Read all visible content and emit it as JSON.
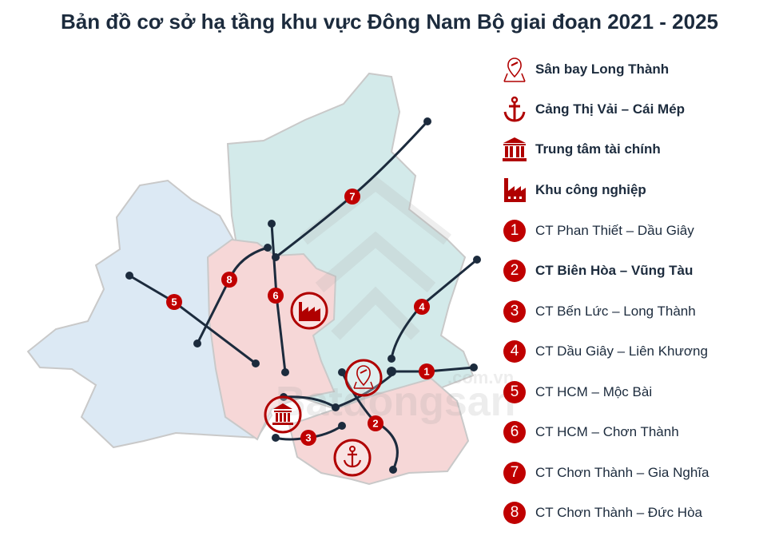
{
  "title": "Bản đồ cơ sở hạ tầng khu vực Đông Nam Bộ giai đoạn 2021 - 2025",
  "colors": {
    "accent_red": "#c00000",
    "line": "#1c2b3d",
    "region_blue": "#dce9f4",
    "region_teal": "#d3eaea",
    "region_pink": "#f6d7d7"
  },
  "watermark": "Batdongsan .com.vn",
  "legend": {
    "facilities": [
      {
        "icon": "airport-pin-icon",
        "label": "Sân bay Long Thành"
      },
      {
        "icon": "anchor-icon",
        "label": "Cảng Thị Vải – Cái Mép"
      },
      {
        "icon": "bank-icon",
        "label": "Trung tâm tài chính"
      },
      {
        "icon": "factory-icon",
        "label": "Khu công nghiệp"
      }
    ],
    "routes": [
      {
        "number": "1",
        "label": "CT Phan Thiết – Dầu Giây"
      },
      {
        "number": "2",
        "label": "CT Biên Hòa – Vũng Tàu"
      },
      {
        "number": "3",
        "label": "CT Bến Lức – Long Thành"
      },
      {
        "number": "4",
        "label": "CT Dầu Giây – Liên Khương"
      },
      {
        "number": "5",
        "label": "CT HCM – Mộc Bài"
      },
      {
        "number": "6",
        "label": "CT HCM – Chơn Thành"
      },
      {
        "number": "7",
        "label": "CT Chơn Thành – Gia Nghĩa"
      },
      {
        "number": "8",
        "label": "CT Chơn Thành – Đức Hòa"
      }
    ]
  }
}
